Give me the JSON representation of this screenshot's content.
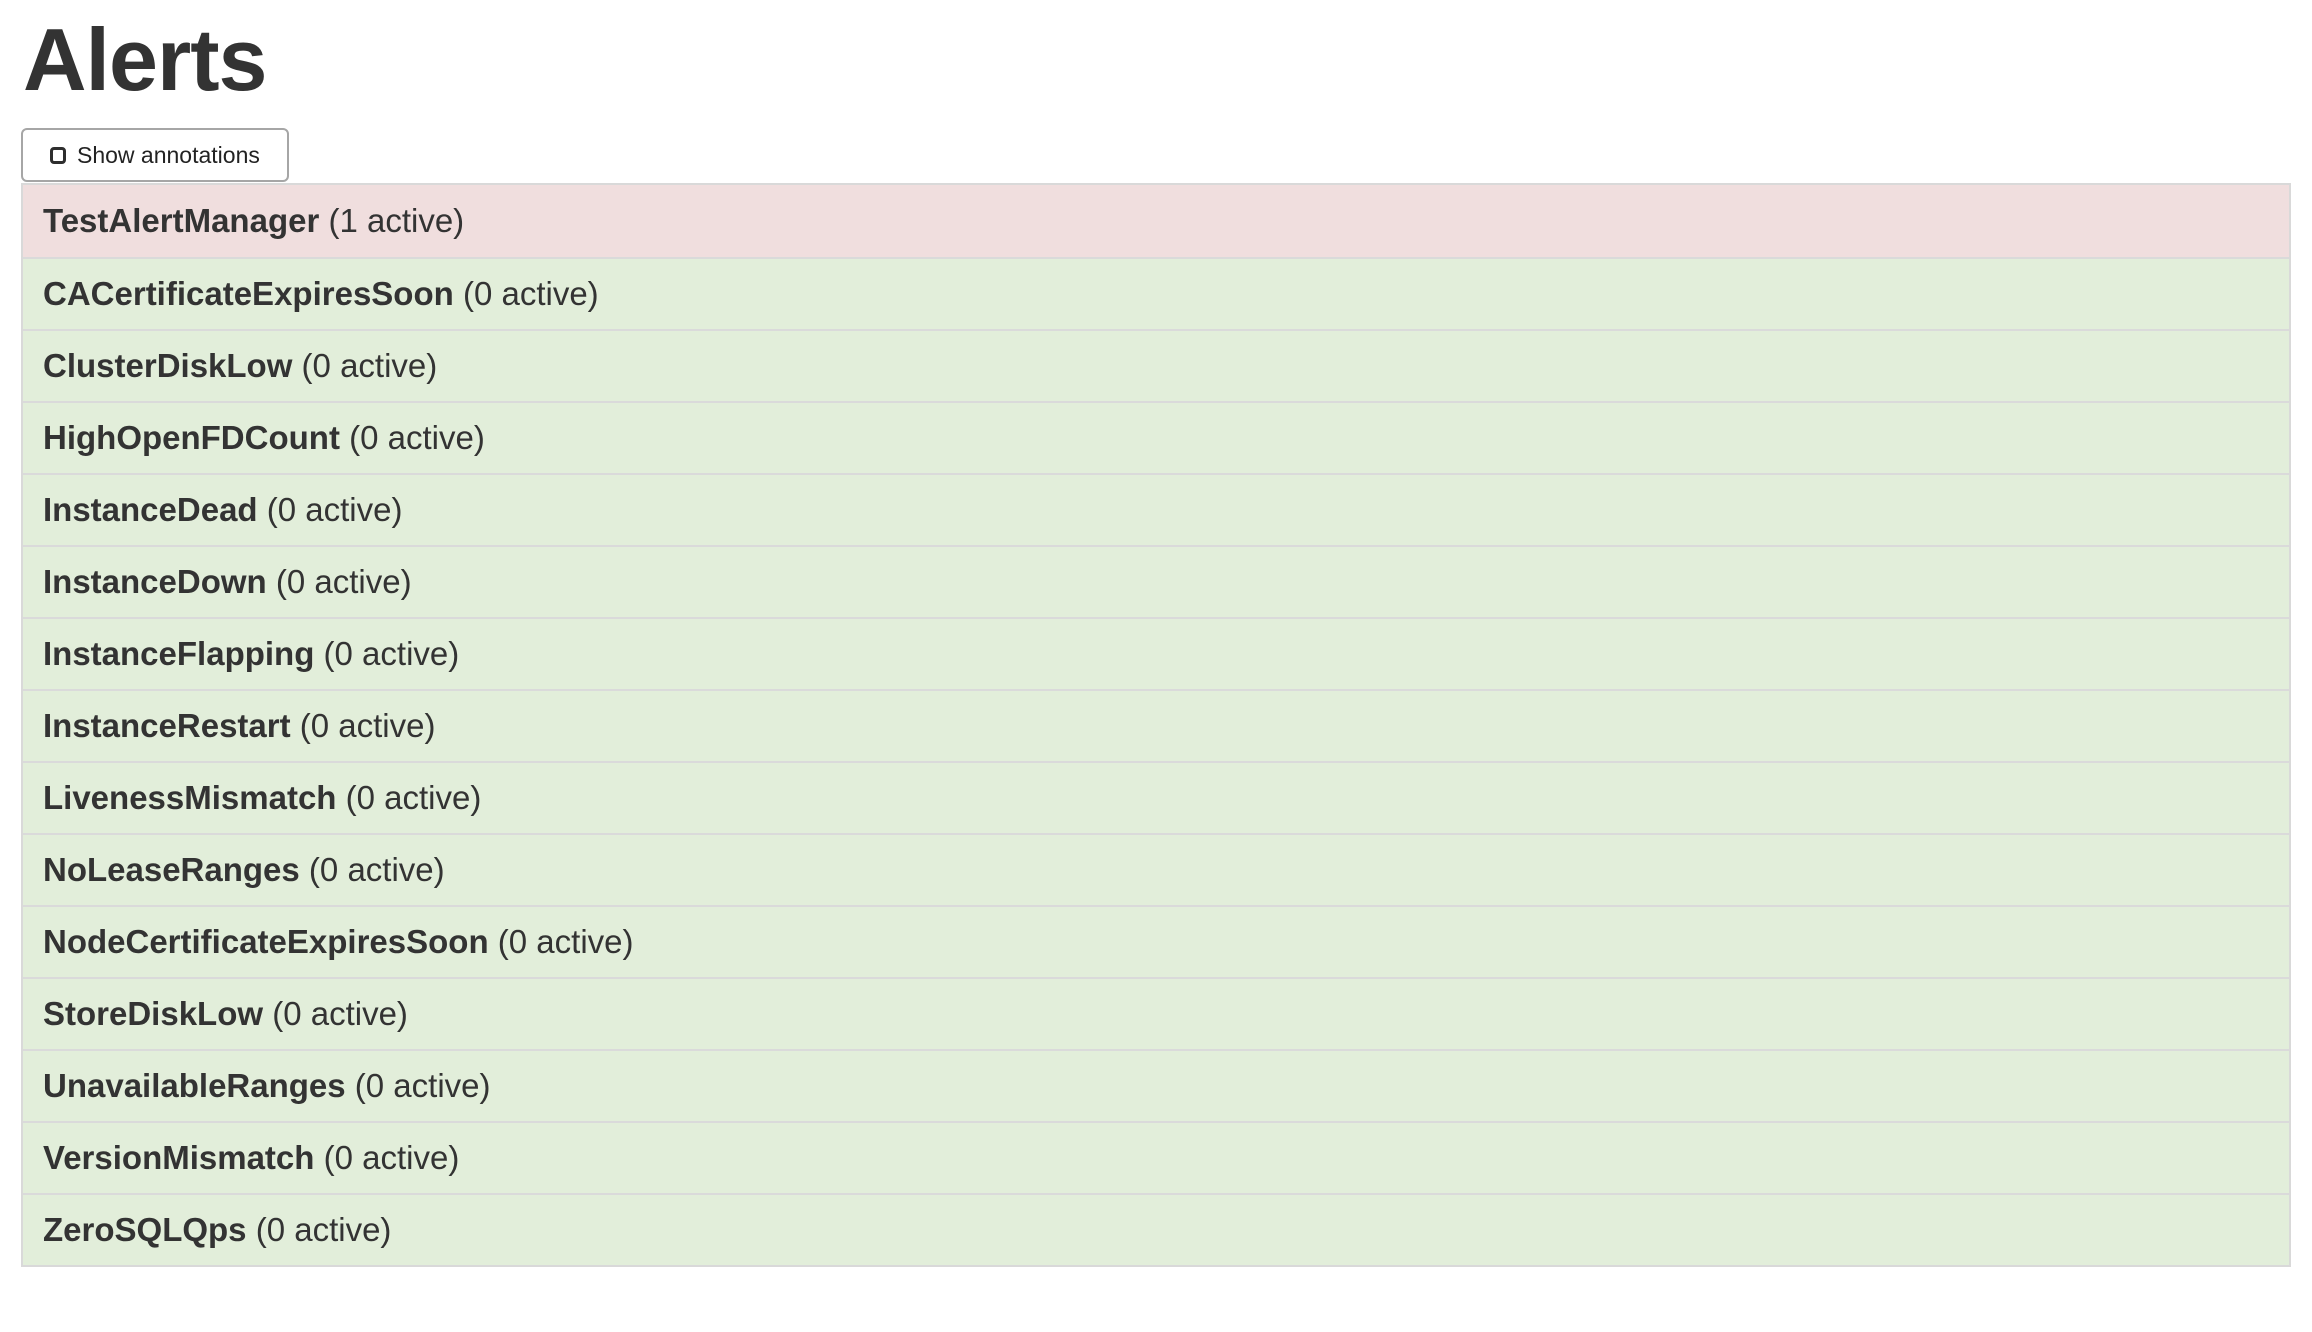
{
  "header": {
    "title": "Alerts"
  },
  "toolbar": {
    "show_annotations_label": "Show annotations",
    "checkbox_checked": false
  },
  "alerts": [
    {
      "name": "TestAlertManager",
      "count_label": "(1 active)",
      "active": 1,
      "state": "firing"
    },
    {
      "name": "CACertificateExpiresSoon",
      "count_label": "(0 active)",
      "active": 0,
      "state": "inactive"
    },
    {
      "name": "ClusterDiskLow",
      "count_label": "(0 active)",
      "active": 0,
      "state": "inactive"
    },
    {
      "name": "HighOpenFDCount",
      "count_label": "(0 active)",
      "active": 0,
      "state": "inactive"
    },
    {
      "name": "InstanceDead",
      "count_label": "(0 active)",
      "active": 0,
      "state": "inactive"
    },
    {
      "name": "InstanceDown",
      "count_label": "(0 active)",
      "active": 0,
      "state": "inactive"
    },
    {
      "name": "InstanceFlapping",
      "count_label": "(0 active)",
      "active": 0,
      "state": "inactive"
    },
    {
      "name": "InstanceRestart",
      "count_label": "(0 active)",
      "active": 0,
      "state": "inactive"
    },
    {
      "name": "LivenessMismatch",
      "count_label": "(0 active)",
      "active": 0,
      "state": "inactive"
    },
    {
      "name": "NoLeaseRanges",
      "count_label": "(0 active)",
      "active": 0,
      "state": "inactive"
    },
    {
      "name": "NodeCertificateExpiresSoon",
      "count_label": "(0 active)",
      "active": 0,
      "state": "inactive"
    },
    {
      "name": "StoreDiskLow",
      "count_label": "(0 active)",
      "active": 0,
      "state": "inactive"
    },
    {
      "name": "UnavailableRanges",
      "count_label": "(0 active)",
      "active": 0,
      "state": "inactive"
    },
    {
      "name": "VersionMismatch",
      "count_label": "(0 active)",
      "active": 0,
      "state": "inactive"
    },
    {
      "name": "ZeroSQLQps",
      "count_label": "(0 active)",
      "active": 0,
      "state": "inactive"
    }
  ],
  "colors": {
    "firing_bg": "#f0dede",
    "inactive_bg": "#e2eeda",
    "list_border": "#d9d9d9",
    "row_divider": "#dadada",
    "button_border": "#a6a6a6",
    "text": "#333333"
  }
}
